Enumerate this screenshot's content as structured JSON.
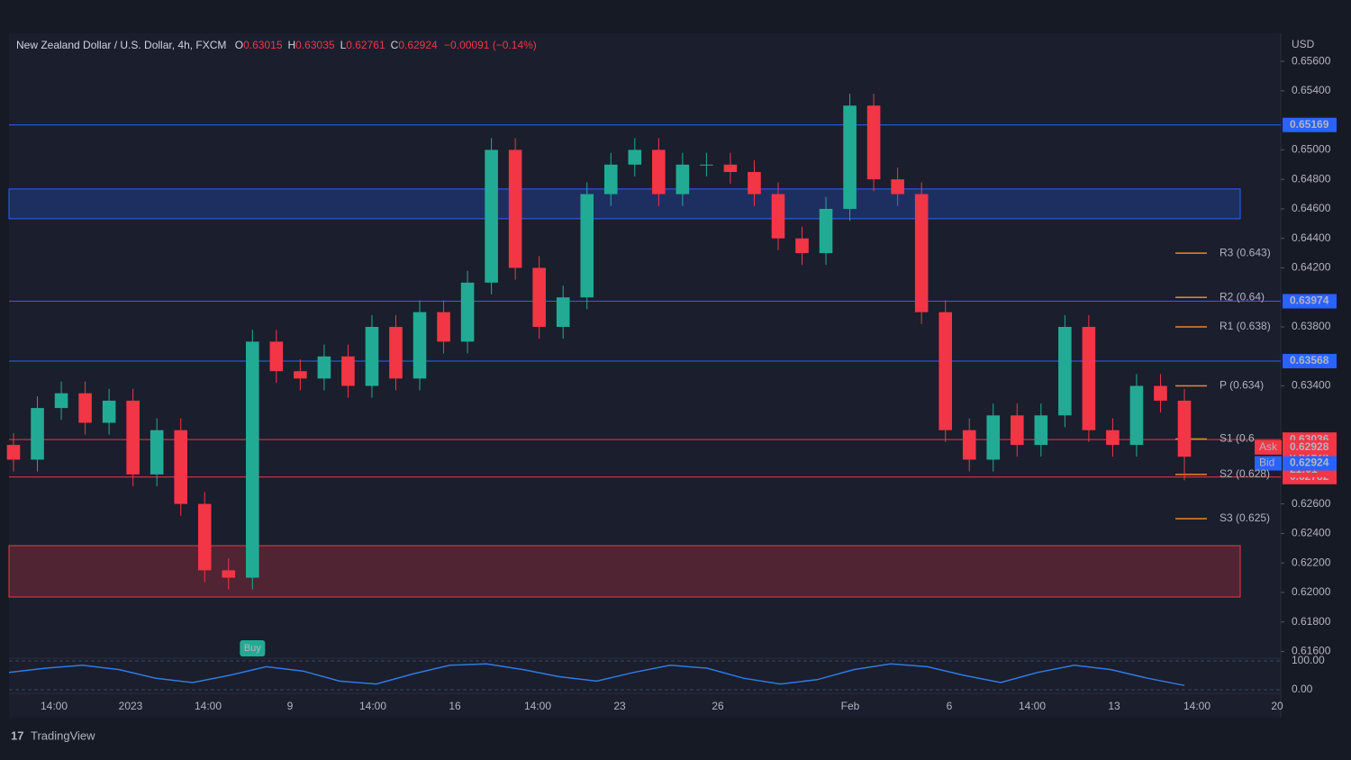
{
  "chart_data": {
    "type": "candlestick",
    "title": "New Zealand Dollar / U.S. Dollar, 4h, FXCM",
    "ohlc_header": [
      {
        "key": "O",
        "value": "0.63015"
      },
      {
        "key": "H",
        "value": "0.63035"
      },
      {
        "key": "L",
        "value": "0.62761"
      },
      {
        "key": "C",
        "value": "0.62924"
      }
    ],
    "change": "−0.00091 (−0.14%)",
    "currency": "USD",
    "up_color": "#22ab94",
    "down_color": "#f23645",
    "open": [
      0.63,
      0.629,
      0.6325,
      0.6335,
      0.6315,
      0.633,
      0.628,
      0.631,
      0.626,
      0.6215,
      0.621,
      0.637,
      0.635,
      0.6345,
      0.636,
      0.634,
      0.638,
      0.6345,
      0.639,
      0.637,
      0.641,
      0.65,
      0.642,
      0.638,
      0.64,
      0.647,
      0.649,
      0.65,
      0.647,
      0.649,
      0.649,
      0.6485,
      0.647,
      0.644,
      0.643,
      0.646,
      0.653,
      0.648,
      0.647,
      0.639,
      0.631,
      0.629,
      0.632,
      0.63,
      0.632,
      0.638,
      0.631,
      0.63,
      0.634,
      0.633
    ],
    "high": [
      0.6308,
      0.6333,
      0.6343,
      0.6343,
      0.6338,
      0.6338,
      0.6318,
      0.6318,
      0.6268,
      0.6223,
      0.6378,
      0.6378,
      0.6358,
      0.6368,
      0.6368,
      0.6388,
      0.6388,
      0.6398,
      0.6398,
      0.6418,
      0.6508,
      0.6508,
      0.6428,
      0.6408,
      0.6478,
      0.6498,
      0.6508,
      0.6508,
      0.6498,
      0.6498,
      0.6498,
      0.6493,
      0.6478,
      0.6448,
      0.6468,
      0.6538,
      0.6538,
      0.6488,
      0.6478,
      0.6398,
      0.6318,
      0.6328,
      0.6328,
      0.6328,
      0.6388,
      0.6388,
      0.6318,
      0.6348,
      0.6348,
      0.6338
    ],
    "low": [
      0.6282,
      0.6282,
      0.6317,
      0.6307,
      0.6307,
      0.6272,
      0.6272,
      0.6252,
      0.6207,
      0.6202,
      0.6202,
      0.6342,
      0.6337,
      0.6337,
      0.6332,
      0.6332,
      0.6337,
      0.6337,
      0.6362,
      0.6362,
      0.6402,
      0.6412,
      0.6372,
      0.6372,
      0.6392,
      0.6462,
      0.6482,
      0.6462,
      0.6462,
      0.6482,
      0.6477,
      0.6462,
      0.6432,
      0.6422,
      0.6422,
      0.6452,
      0.6472,
      0.6462,
      0.6382,
      0.6302,
      0.6282,
      0.6282,
      0.6292,
      0.6292,
      0.6312,
      0.6302,
      0.6292,
      0.6292,
      0.6322,
      0.6276
    ],
    "close": [
      0.629,
      0.6325,
      0.6335,
      0.6315,
      0.633,
      0.628,
      0.631,
      0.626,
      0.6215,
      0.621,
      0.637,
      0.635,
      0.6345,
      0.636,
      0.634,
      0.638,
      0.6345,
      0.639,
      0.637,
      0.641,
      0.65,
      0.642,
      0.638,
      0.64,
      0.647,
      0.649,
      0.65,
      0.647,
      0.649,
      0.649,
      0.6485,
      0.647,
      0.644,
      0.643,
      0.646,
      0.653,
      0.648,
      0.647,
      0.639,
      0.631,
      0.629,
      0.632,
      0.63,
      0.632,
      0.638,
      0.631,
      0.63,
      0.634,
      0.633,
      0.6292
    ],
    "ylim": [
      0.6156,
      0.6579
    ],
    "yticks": [
      {
        "value": 0.616,
        "label": "0.61600"
      },
      {
        "value": 0.618,
        "label": "0.61800"
      },
      {
        "value": 0.62,
        "label": "0.62000"
      },
      {
        "value": 0.622,
        "label": "0.62200"
      },
      {
        "value": 0.624,
        "label": "0.62400"
      },
      {
        "value": 0.626,
        "label": "0.62600"
      },
      {
        "value": 0.634,
        "label": "0.63400"
      },
      {
        "value": 0.638,
        "label": "0.63800"
      },
      {
        "value": 0.642,
        "label": "0.64200"
      },
      {
        "value": 0.644,
        "label": "0.64400"
      },
      {
        "value": 0.646,
        "label": "0.64600"
      },
      {
        "value": 0.648,
        "label": "0.64800"
      },
      {
        "value": 0.65,
        "label": "0.65000"
      },
      {
        "value": 0.654,
        "label": "0.65400"
      },
      {
        "value": 0.656,
        "label": "0.65600"
      }
    ],
    "x_labels": [
      "14:00",
      "2023",
      "14:00",
      "9",
      "14:00",
      "16",
      "14:00",
      "23",
      "26",
      "Feb",
      "6",
      "14:00",
      "13",
      "14:00",
      "20"
    ],
    "levels": [
      {
        "value": 0.65169,
        "color": "#2962ff"
      },
      {
        "value": 0.63974,
        "color": "#2962ff"
      },
      {
        "value": 0.63568,
        "color": "#2962ff"
      },
      {
        "value": 0.63036,
        "color": "#f23645"
      },
      {
        "value": 0.62782,
        "color": "#f23645"
      }
    ],
    "zones": [
      {
        "from": 0.64533,
        "to": 0.64735,
        "color": "#2962ff"
      },
      {
        "from": 0.61969,
        "to": 0.62317,
        "color": "#f23645"
      }
    ],
    "pivots": [
      {
        "label": "R3 (0.643)",
        "value": 0.643
      },
      {
        "label": "R2 (0.64)",
        "value": 0.64
      },
      {
        "label": "R1 (0.638)",
        "value": 0.638
      },
      {
        "label": "P (0.634)",
        "value": 0.634
      },
      {
        "label": "S1 (0.6",
        "value": 0.6304
      },
      {
        "label": "S2 (0.628)",
        "value": 0.628
      },
      {
        "label": "S3 (0.625)",
        "value": 0.625
      }
    ],
    "price_tags": [
      {
        "value": 0.62924,
        "color": "#f23645"
      },
      {
        "label": "21:01",
        "value": 0.6283,
        "color": "#f23645"
      }
    ],
    "quote_tags": [
      {
        "label": "Ask",
        "value": 0.62928,
        "color": "#f23645"
      },
      {
        "label": "Bid",
        "value": 0.62924,
        "color": "#2962ff"
      }
    ],
    "signal": "Buy",
    "oscillator": {
      "ylim": [
        0,
        100
      ],
      "yticks": [
        {
          "value": 100,
          "label": "100.00"
        },
        {
          "value": 0,
          "label": "0.00"
        }
      ],
      "values": [
        60,
        75,
        85,
        70,
        40,
        25,
        50,
        80,
        65,
        30,
        20,
        55,
        85,
        90,
        70,
        45,
        30,
        60,
        85,
        75,
        40,
        20,
        35,
        70,
        90,
        80,
        50,
        25,
        60,
        85,
        70,
        40,
        15
      ]
    },
    "brand": "TradingView"
  }
}
